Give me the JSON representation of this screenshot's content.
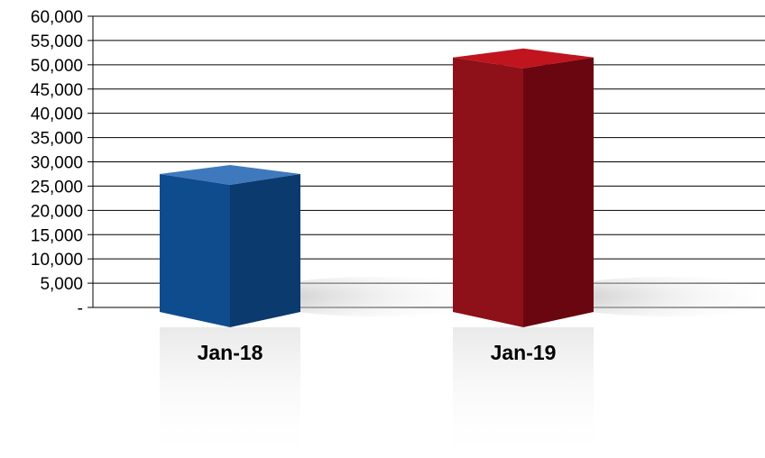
{
  "chart_data": {
    "type": "bar",
    "style": "3d-column",
    "categories": [
      "Jan-18",
      "Jan-19"
    ],
    "values": [
      27500,
      51500
    ],
    "ylim": [
      0,
      60000
    ],
    "yticks": [
      0,
      5000,
      10000,
      15000,
      20000,
      25000,
      30000,
      35000,
      40000,
      45000,
      50000,
      55000,
      60000
    ],
    "ytick_labels": [
      "-",
      "5,000",
      "10,000",
      "15,000",
      "20,000",
      "25,000",
      "30,000",
      "35,000",
      "40,000",
      "45,000",
      "50,000",
      "55,000",
      "60,000"
    ],
    "grid": true,
    "legend": "none",
    "colors": [
      {
        "front": "#0e4c8e",
        "side": "#0a3a6e",
        "top": "#3f79bd"
      },
      {
        "front": "#8e1018",
        "side": "#6a0610",
        "top": "#c0141e"
      }
    ]
  }
}
